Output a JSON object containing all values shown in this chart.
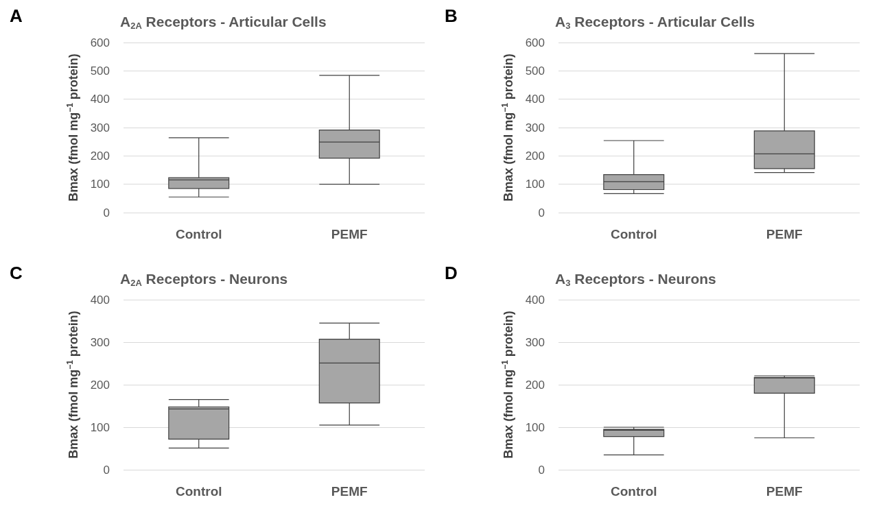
{
  "chart_data": [
    {
      "type": "box",
      "title": "A$_{2A}$ Receptors - Articular Cells",
      "ylabel": "Bmax (fmol mg$^{−1}$ protein)",
      "categories": [
        "Control",
        "PEMF"
      ],
      "color": "#a6a6a6",
      "ylim": [
        0,
        600
      ],
      "yticks": [
        0,
        100,
        200,
        300,
        400,
        500,
        600
      ],
      "grid": "y",
      "annotations": [
        "A"
      ],
      "boxes": [
        {
          "low": 55,
          "q1": 85,
          "median": 115,
          "q3": 123,
          "high": 264
        },
        {
          "low": 100,
          "q1": 192,
          "median": 249,
          "q3": 291,
          "high": 484
        }
      ]
    },
    {
      "type": "box",
      "title": "A$_{3}$ Receptors - Articular Cells",
      "ylabel": "Bmax (fmol mg$^{−1}$ protein)",
      "categories": [
        "Control",
        "PEMF"
      ],
      "color": "#a6a6a6",
      "ylim": [
        0,
        600
      ],
      "yticks": [
        0,
        100,
        200,
        300,
        400,
        500,
        600
      ],
      "grid": "y",
      "annotations": [
        "B"
      ],
      "boxes": [
        {
          "low": 67,
          "q1": 81,
          "median": 109,
          "q3": 134,
          "high": 254
        },
        {
          "low": 141,
          "q1": 155,
          "median": 207,
          "q3": 288,
          "high": 561
        }
      ]
    },
    {
      "type": "box",
      "title": "A$_{2A}$ Receptors - Neurons",
      "ylabel": "Bmax (fmol mg$^{−1}$ protein)",
      "categories": [
        "Control",
        "PEMF"
      ],
      "color": "#a6a6a6",
      "ylim": [
        0,
        400
      ],
      "yticks": [
        0,
        100,
        200,
        300,
        400
      ],
      "grid": "y",
      "annotations": [
        "C"
      ],
      "boxes": [
        {
          "low": 51,
          "q1": 72,
          "median": 143,
          "q3": 148,
          "high": 165
        },
        {
          "low": 105,
          "q1": 157,
          "median": 251,
          "q3": 307,
          "high": 345
        }
      ]
    },
    {
      "type": "box",
      "title": "A$_{3}$ Receptors - Neurons",
      "ylabel": "Bmax (fmol mg$^{−1}$ protein)",
      "categories": [
        "Control",
        "PEMF"
      ],
      "color": "#a6a6a6",
      "ylim": [
        0,
        400
      ],
      "yticks": [
        0,
        100,
        200,
        300,
        400
      ],
      "grid": "y",
      "annotations": [
        "D"
      ],
      "boxes": [
        {
          "low": 35,
          "q1": 78,
          "median": 93,
          "q3": 95,
          "high": 100
        },
        {
          "low": 75,
          "q1": 180,
          "median": 216,
          "q3": 217,
          "high": 221
        }
      ]
    }
  ]
}
